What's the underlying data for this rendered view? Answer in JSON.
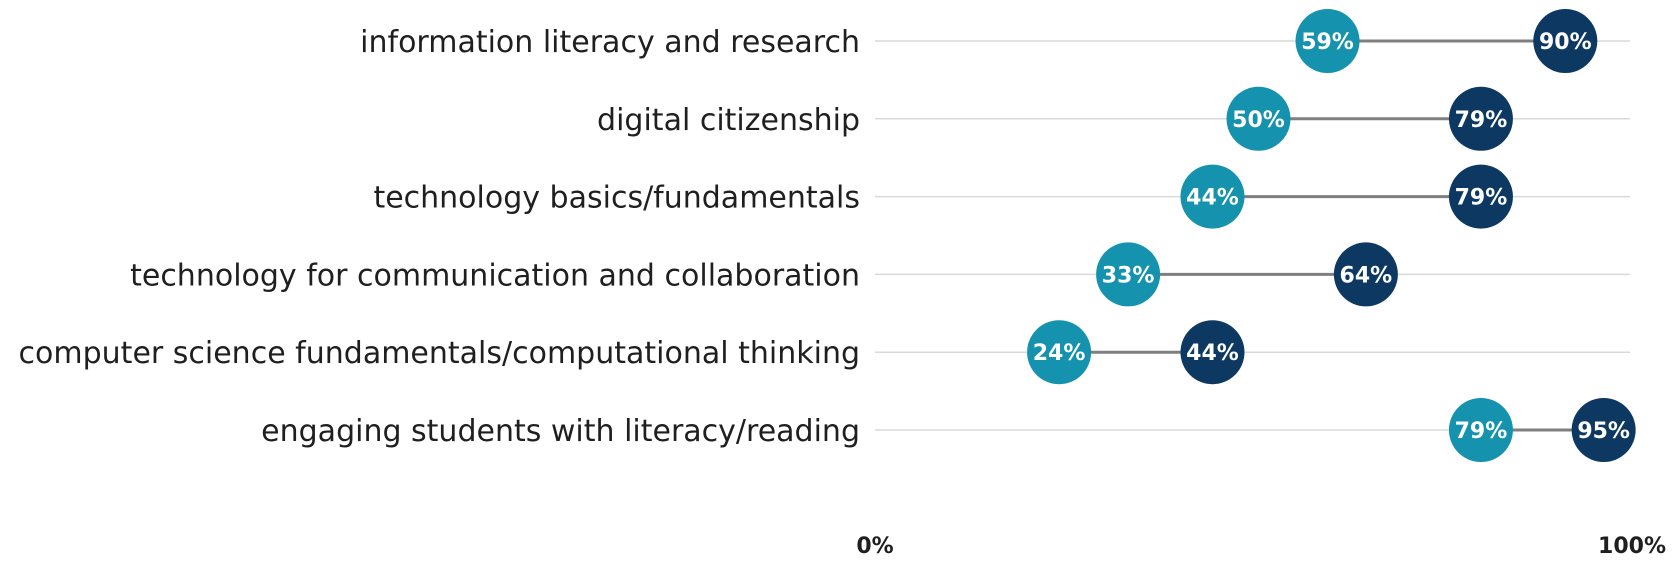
{
  "chart_data": {
    "type": "dumbbell",
    "title": "",
    "xlabel": "",
    "ylabel": "",
    "xlim": [
      0,
      100
    ],
    "grid": true,
    "legend": "none",
    "categories": [
      "information literacy and research",
      "digital citizenship",
      "technology basics/fundamentals",
      "technology for communication and collaboration",
      "computer science fundamentals/computational thinking",
      "engaging students with literacy/reading"
    ],
    "series": [
      {
        "values": [
          59,
          50,
          44,
          33,
          24,
          79
        ],
        "labels": [
          "59%",
          "50%",
          "44%",
          "33%",
          "24%",
          "79%"
        ],
        "color": "#1592ad"
      },
      {
        "values": [
          90,
          79,
          79,
          64,
          44,
          95
        ],
        "labels": [
          "90%",
          "79%",
          "79%",
          "64%",
          "44%",
          "95%"
        ],
        "color": "#0c3862"
      }
    ],
    "x_tick_labels": [
      "0%",
      "100%"
    ],
    "connector_color": "#7f7f7f",
    "gridline_color": "#d9d9d9"
  }
}
